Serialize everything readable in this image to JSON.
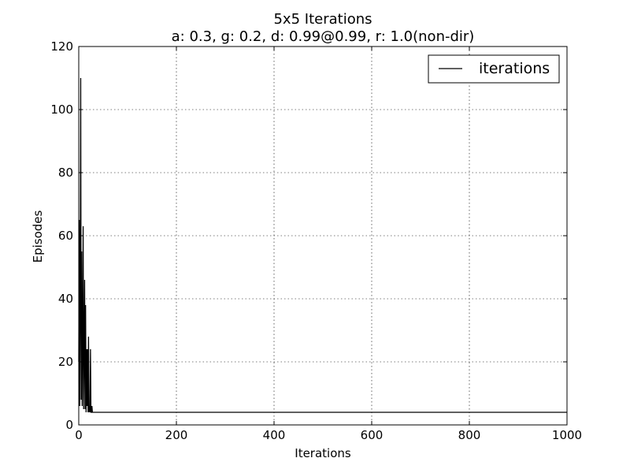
{
  "chart_data": {
    "type": "line",
    "title": "5x5 Iterations",
    "subtitle": "a: 0.3, g: 0.2, d: 0.99@0.99, r: 1.0(non-dir)",
    "xlabel": "Iterations",
    "ylabel": "Episodes",
    "xlim": [
      0,
      1000
    ],
    "ylim": [
      0,
      120
    ],
    "xticks": [
      0,
      200,
      400,
      600,
      800,
      1000
    ],
    "yticks": [
      0,
      20,
      40,
      60,
      80,
      100,
      120
    ],
    "grid": true,
    "legend_position": "top-right",
    "series": [
      {
        "name": "iterations",
        "color": "#000000",
        "x": [
          0,
          1,
          2,
          3,
          4,
          5,
          6,
          7,
          8,
          9,
          10,
          11,
          12,
          13,
          14,
          15,
          16,
          17,
          18,
          19,
          20,
          21,
          22,
          23,
          24,
          25,
          26,
          27,
          28,
          29,
          30,
          31,
          32,
          33,
          34,
          35,
          1000
        ],
        "y": [
          20,
          65,
          6,
          40,
          110,
          8,
          55,
          6,
          26,
          63,
          5,
          22,
          46,
          5,
          38,
          4,
          24,
          6,
          24,
          4,
          28,
          4,
          6,
          4,
          24,
          4,
          4,
          6,
          4,
          4,
          4,
          4,
          4,
          4,
          4,
          4,
          4
        ]
      }
    ]
  }
}
